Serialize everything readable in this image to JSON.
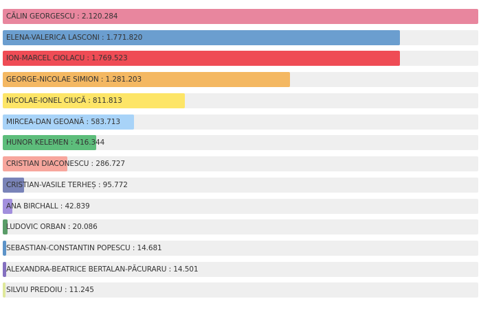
{
  "chart_data": {
    "type": "bar",
    "orientation": "horizontal",
    "title": "",
    "xlabel": "",
    "ylabel": "",
    "xlim": [
      0,
      2120284
    ],
    "grid": false,
    "legend": "none",
    "label_format": "{name} : {value}",
    "categories": [
      "CĂLIN GEORGESCU",
      "ELENA-VALERICA LASCONI",
      "ION-MARCEL CIOLACU",
      "GEORGE-NICOLAE SIMION",
      "NICOLAE-IONEL CIUCĂ",
      "MIRCEA-DAN GEOANĂ",
      "HUNOR KELEMEN",
      "CRISTIAN DIACONESCU",
      "CRISTIAN-VASILE TERHEȘ",
      "ANA BIRCHALL",
      "LUDOVIC ORBAN",
      "SEBASTIAN-CONSTANTIN POPESCU",
      "ALEXANDRA-BEATRICE BERTALAN-PĂCURARU",
      "SILVIU PREDOIU"
    ],
    "values": [
      2120284,
      1771820,
      1769523,
      1281203,
      811813,
      583713,
      416344,
      286727,
      95772,
      42839,
      20086,
      14681,
      14501,
      11245
    ],
    "colors": [
      "#e8869e",
      "#6b9ecf",
      "#ef4c55",
      "#f4b862",
      "#fde567",
      "#a8d3f8",
      "#5dbd7b",
      "#f7a69d",
      "#7983b8",
      "#a28fdd",
      "#5a9c68",
      "#5c93c8",
      "#8470c0",
      "#dfe89a"
    ],
    "track_color": "#efefef"
  },
  "rows": [
    {
      "label": "CĂLIN GEORGESCU : 2.120.284",
      "color": "#e8869e",
      "pct": "100%"
    },
    {
      "label": "ELENA-VALERICA LASCONI : 1.771.820",
      "color": "#6b9ecf",
      "pct": "83.57%"
    },
    {
      "label": "ION-MARCEL CIOLACU : 1.769.523",
      "color": "#ef4c55",
      "pct": "83.46%"
    },
    {
      "label": "GEORGE-NICOLAE SIMION : 1.281.203",
      "color": "#f4b862",
      "pct": "60.43%"
    },
    {
      "label": "NICOLAE-IONEL CIUCĂ : 811.813",
      "color": "#fde567",
      "pct": "38.29%"
    },
    {
      "label": "MIRCEA-DAN GEOANĂ : 583.713",
      "color": "#a8d3f8",
      "pct": "27.53%"
    },
    {
      "label": "HUNOR KELEMEN : 416.344",
      "color": "#5dbd7b",
      "pct": "19.64%"
    },
    {
      "label": "CRISTIAN DIACONESCU : 286.727",
      "color": "#f7a69d",
      "pct": "13.52%"
    },
    {
      "label": "CRISTIAN-VASILE TERHEȘ : 95.772",
      "color": "#7983b8",
      "pct": "4.52%"
    },
    {
      "label": "ANA BIRCHALL : 42.839",
      "color": "#a28fdd",
      "pct": "2.02%"
    },
    {
      "label": "LUDOVIC ORBAN : 20.086",
      "color": "#5a9c68",
      "pct": "0.95%"
    },
    {
      "label": "SEBASTIAN-CONSTANTIN POPESCU : 14.681",
      "color": "#5c93c8",
      "pct": "0.69%"
    },
    {
      "label": "ALEXANDRA-BEATRICE BERTALAN-PĂCURARU : 14.501",
      "color": "#8470c0",
      "pct": "0.68%"
    },
    {
      "label": "SILVIU PREDOIU : 11.245",
      "color": "#dfe89a",
      "pct": "0.53%"
    }
  ]
}
